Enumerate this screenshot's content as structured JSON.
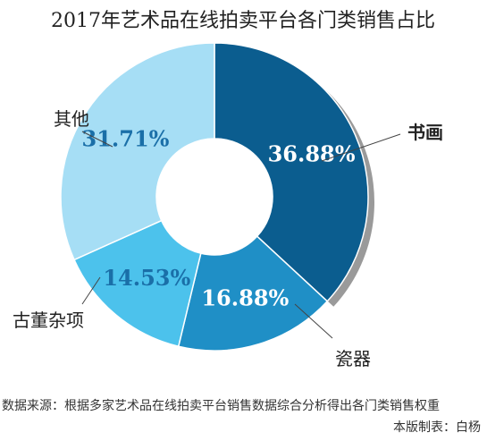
{
  "chart_data": {
    "type": "pie",
    "title": "2017年艺术品在线拍卖平台各门类销售占比",
    "categories": [
      "书画",
      "瓷器",
      "古董杂项",
      "其他"
    ],
    "values": [
      36.88,
      16.88,
      14.53,
      31.71
    ],
    "value_labels": [
      "36.88%",
      "16.88%",
      "14.53%",
      "31.71%"
    ],
    "colors": [
      "#0b5d8f",
      "#1f8fc6",
      "#4cc2ec",
      "#a6def5"
    ],
    "label_colors": [
      "#ffffff",
      "#ffffff",
      "#1a6fa8",
      "#1a6fa8"
    ],
    "donut": true
  },
  "source_note": "数据来源：根据多家艺术品在线拍卖平台销售数据综合分析得出各门类销售权重",
  "credit": "本版制表：白杨"
}
